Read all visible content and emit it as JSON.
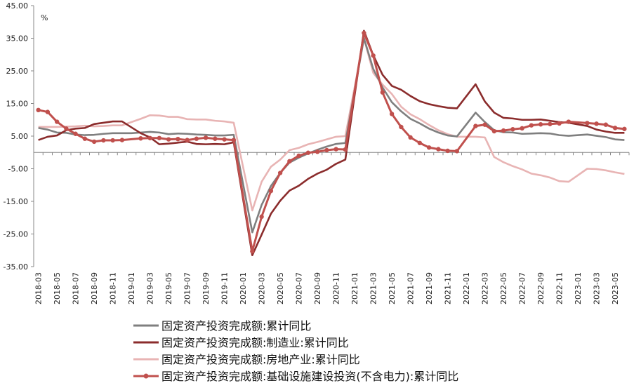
{
  "chart_data": {
    "type": "line",
    "unit_label": "%",
    "ylim": [
      -35,
      45
    ],
    "yticks": [
      "45.00",
      "35.00",
      "25.00",
      "15.00",
      "5.00",
      "-5.00",
      "-15.00",
      "-25.00",
      "-35.00"
    ],
    "grid": false,
    "legend_position": "bottom",
    "x": [
      "2018-03",
      "2018-04",
      "2018-05",
      "2018-06",
      "2018-07",
      "2018-08",
      "2018-09",
      "2018-10",
      "2018-11",
      "2018-12",
      "2019-01",
      "2019-02",
      "2019-03",
      "2019-04",
      "2019-05",
      "2019-06",
      "2019-07",
      "2019-08",
      "2019-09",
      "2019-10",
      "2019-11",
      "2019-12",
      "2020-01",
      "2020-02",
      "2020-03",
      "2020-04",
      "2020-05",
      "2020-06",
      "2020-07",
      "2020-08",
      "2020-09",
      "2020-10",
      "2020-11",
      "2020-12",
      "2021-01",
      "2021-02",
      "2021-03",
      "2021-04",
      "2021-05",
      "2021-06",
      "2021-07",
      "2021-08",
      "2021-09",
      "2021-10",
      "2021-11",
      "2021-12",
      "2022-01",
      "2022-02",
      "2022-03",
      "2022-04",
      "2022-05",
      "2022-06",
      "2022-07",
      "2022-08",
      "2022-09",
      "2022-10",
      "2022-11",
      "2022-12",
      "2023-01",
      "2023-02",
      "2023-03",
      "2023-04",
      "2023-05",
      "2023-06"
    ],
    "x_tick_labels": [
      "2018-03",
      "2018-05",
      "2018-07",
      "2018-09",
      "2018-11",
      "2019-01",
      "2019-03",
      "2019-05",
      "2019-07",
      "2019-09",
      "2019-11",
      "2020-01",
      "2020-03",
      "2020-05",
      "2020-07",
      "2020-09",
      "2020-11",
      "2021-01",
      "2021-03",
      "2021-05",
      "2021-07",
      "2021-09",
      "2021-11",
      "2022-01",
      "2022-03",
      "2022-05",
      "2022-07",
      "2022-09",
      "2022-11",
      "2023-01",
      "2023-03",
      "2023-05"
    ],
    "series": [
      {
        "name": "固定资产投资完成额:累计同比",
        "color": "#7f7f7f",
        "marker": false,
        "values": [
          7.5,
          7.0,
          6.1,
          6.0,
          5.5,
          5.3,
          5.4,
          5.7,
          5.9,
          5.9,
          5.9,
          6.1,
          6.3,
          6.1,
          5.6,
          5.8,
          5.7,
          5.5,
          5.4,
          5.2,
          5.2,
          5.4,
          null,
          -24.5,
          -16.1,
          -10.3,
          -6.3,
          -3.1,
          -1.6,
          -0.3,
          0.8,
          1.8,
          2.6,
          2.9,
          null,
          35.0,
          25.6,
          19.9,
          15.4,
          12.6,
          10.3,
          8.9,
          7.3,
          6.1,
          5.2,
          4.9,
          null,
          12.2,
          9.3,
          6.8,
          6.2,
          6.1,
          5.7,
          5.8,
          5.9,
          5.8,
          5.3,
          5.1,
          null,
          5.5,
          5.1,
          4.7,
          4.0,
          3.8
        ]
      },
      {
        "name": "固定资产投资完成额:制造业:累计同比",
        "color": "#8b2c2c",
        "marker": false,
        "values": [
          3.8,
          4.8,
          5.2,
          6.8,
          7.3,
          7.5,
          8.7,
          9.1,
          9.5,
          9.5,
          null,
          5.9,
          4.6,
          2.5,
          2.7,
          3.0,
          3.3,
          2.6,
          2.5,
          2.6,
          2.5,
          3.1,
          null,
          -31.5,
          -25.2,
          -18.8,
          -14.8,
          -11.7,
          -10.2,
          -8.1,
          -6.5,
          -5.3,
          -3.5,
          -2.2,
          null,
          37.3,
          29.8,
          23.8,
          20.4,
          19.2,
          17.3,
          15.7,
          14.8,
          14.2,
          13.7,
          13.5,
          null,
          20.9,
          15.6,
          12.2,
          10.6,
          10.4,
          10.0,
          10.0,
          10.1,
          9.7,
          9.3,
          9.1,
          null,
          8.1,
          7.0,
          6.4,
          6.0,
          6.0
        ]
      },
      {
        "name": "固定资产投资完成额:房地产业:累计同比",
        "color": "#e8b4b4",
        "marker": false,
        "values": [
          7.8,
          7.8,
          7.8,
          7.9,
          8.0,
          8.2,
          8.0,
          8.1,
          8.3,
          8.3,
          null,
          10.3,
          11.4,
          11.3,
          10.9,
          10.9,
          10.2,
          10.1,
          10.1,
          9.7,
          9.5,
          9.1,
          null,
          -17.8,
          -9.0,
          -4.4,
          -2.2,
          0.7,
          1.4,
          2.5,
          3.2,
          4.0,
          4.8,
          5.0,
          null,
          35.0,
          24.4,
          20.8,
          17.9,
          14.0,
          11.7,
          10.2,
          8.4,
          6.8,
          5.6,
          4.8,
          null,
          4.8,
          4.6,
          -1.4,
          -3.0,
          -4.2,
          -5.2,
          -6.5,
          -7.0,
          -7.7,
          -8.8,
          -9.0,
          null,
          -5.0,
          -5.1,
          -5.5,
          -6.1,
          -6.6
        ]
      },
      {
        "name": "固定资产投资完成额:基础设施建设投资(不含电力):累计同比",
        "color": "#c0504d",
        "marker": true,
        "values": [
          13.0,
          12.4,
          9.4,
          7.3,
          5.7,
          4.2,
          3.3,
          3.7,
          3.7,
          3.8,
          null,
          4.3,
          4.4,
          4.4,
          4.0,
          4.1,
          3.8,
          4.2,
          4.5,
          4.2,
          4.0,
          3.8,
          null,
          -30.3,
          -19.7,
          -11.8,
          -6.3,
          -2.7,
          -1.0,
          -0.1,
          0.2,
          0.7,
          1.0,
          0.9,
          null,
          36.6,
          29.7,
          18.4,
          11.8,
          7.8,
          4.6,
          2.9,
          1.5,
          1.0,
          0.5,
          0.4,
          null,
          8.1,
          8.5,
          6.5,
          6.7,
          7.1,
          7.4,
          8.3,
          8.6,
          8.7,
          8.9,
          9.4,
          null,
          9.0,
          8.8,
          8.5,
          7.5,
          7.2
        ]
      }
    ]
  }
}
